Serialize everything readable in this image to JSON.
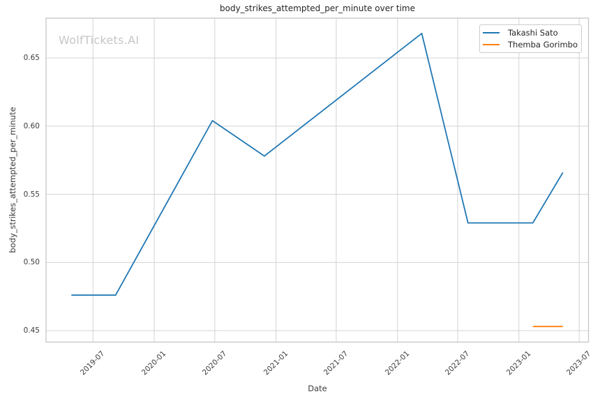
{
  "watermark": "WolfTickets.AI",
  "colors": {
    "background": "#ffffff",
    "grid": "#d3d3d3",
    "border": "#c6c6c6",
    "title_text": "#262626",
    "tick_text": "#3b3b3b",
    "watermark_text": "#c6c6c6",
    "series_blue": "#1f77b4",
    "series_orange": "#ff7f0e"
  },
  "chart_data": {
    "type": "line",
    "title": "body_strikes_attempted_per_minute over time",
    "xlabel": "Date",
    "ylabel": "body_strikes_attempted_per_minute",
    "grid": true,
    "x_tick_labels": [
      "2019-07",
      "2020-01",
      "2020-07",
      "2021-01",
      "2021-07",
      "2022-01",
      "2022-07",
      "2023-01",
      "2023-07"
    ],
    "y_ticks": [
      0.45,
      0.5,
      0.55,
      0.6,
      0.65
    ],
    "y_tick_labels": [
      "0.45",
      "0.50",
      "0.55",
      "0.60",
      "0.65"
    ],
    "xlim": [
      "2019-02-10",
      "2023-07-29"
    ],
    "ylim": [
      0.4416,
      0.6792
    ],
    "legend": {
      "position": "upper right",
      "entries": [
        {
          "label": "Takashi Sato",
          "color": "#1f77b4"
        },
        {
          "label": "Themba Gorimbo",
          "color": "#ff7f0e"
        }
      ]
    },
    "series": [
      {
        "name": "Takashi Sato",
        "color": "#1f77b4",
        "x": [
          "2019-04-27",
          "2019-09-07",
          "2020-06-24",
          "2020-11-27",
          "2022-03-15",
          "2022-08-01",
          "2023-02-12",
          "2023-05-13"
        ],
        "y": [
          0.476,
          0.476,
          0.604,
          0.578,
          0.668,
          0.529,
          0.529,
          0.566
        ]
      },
      {
        "name": "Themba Gorimbo",
        "color": "#ff7f0e",
        "x": [
          "2023-02-12",
          "2023-05-13"
        ],
        "y": [
          0.453,
          0.453
        ]
      }
    ]
  }
}
